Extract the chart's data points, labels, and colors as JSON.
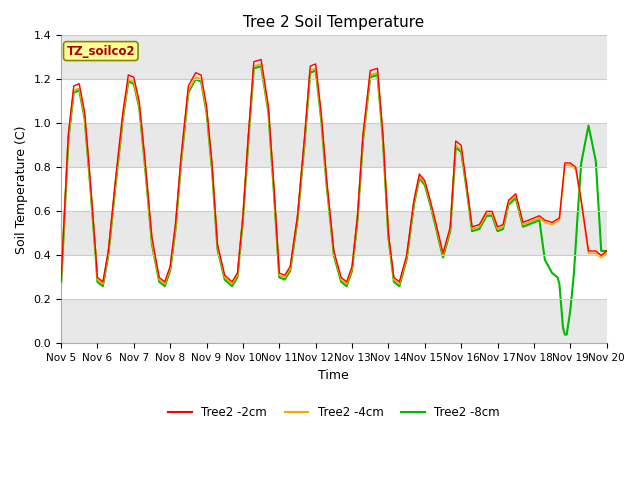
{
  "title": "Tree 2 Soil Temperature",
  "xlabel": "Time",
  "ylabel": "Soil Temperature (C)",
  "xlim": [
    0,
    15
  ],
  "ylim": [
    0.0,
    1.4
  ],
  "yticks": [
    0.0,
    0.2,
    0.4,
    0.6,
    0.8,
    1.0,
    1.2,
    1.4
  ],
  "xtick_labels": [
    "Nov 5",
    "Nov 6",
    "Nov 7",
    "Nov 8",
    "Nov 9",
    "Nov 10",
    "Nov 11",
    "Nov 12",
    "Nov 13",
    "Nov 14",
    "Nov 15",
    "Nov 16",
    "Nov 17",
    "Nov 18",
    "Nov 19",
    "Nov 20"
  ],
  "figure_bg": "#ffffff",
  "plot_bg": "#ffffff",
  "band_colors": [
    "#e8e8e8",
    "#ffffff"
  ],
  "grid_color": "#ffffff",
  "legend_label": "TZ_soilco2",
  "legend_box_facecolor": "#ffff99",
  "legend_box_edgecolor": "#888800",
  "legend_text_color": "#aa0000",
  "series": [
    {
      "label": "Tree2 -2cm",
      "color": "#ff0000",
      "linewidth": 1.0,
      "zorder": 3,
      "x": [
        0.0,
        0.08,
        0.2,
        0.35,
        0.5,
        0.65,
        0.8,
        0.95,
        1.0,
        1.15,
        1.3,
        1.5,
        1.7,
        1.85,
        2.0,
        2.15,
        2.3,
        2.5,
        2.7,
        2.85,
        3.0,
        3.15,
        3.3,
        3.5,
        3.7,
        3.85,
        4.0,
        4.15,
        4.3,
        4.5,
        4.7,
        4.85,
        5.0,
        5.15,
        5.3,
        5.5,
        5.7,
        5.85,
        6.0,
        6.15,
        6.3,
        6.5,
        6.7,
        6.85,
        7.0,
        7.15,
        7.3,
        7.5,
        7.7,
        7.85,
        8.0,
        8.15,
        8.3,
        8.5,
        8.7,
        8.85,
        9.0,
        9.15,
        9.3,
        9.5,
        9.7,
        9.85,
        10.0,
        10.15,
        10.3,
        10.5,
        10.7,
        10.85,
        11.0,
        11.15,
        11.3,
        11.5,
        11.7,
        11.85,
        12.0,
        12.15,
        12.3,
        12.5,
        12.7,
        12.85,
        13.0,
        13.15,
        13.3,
        13.5,
        13.7,
        13.85,
        14.0,
        14.15,
        14.3,
        14.5,
        14.7,
        14.85,
        15.0
      ],
      "y": [
        0.28,
        0.55,
        0.95,
        1.17,
        1.18,
        1.05,
        0.75,
        0.42,
        0.3,
        0.28,
        0.42,
        0.75,
        1.05,
        1.22,
        1.21,
        1.1,
        0.85,
        0.48,
        0.3,
        0.28,
        0.35,
        0.55,
        0.85,
        1.17,
        1.23,
        1.22,
        1.08,
        0.82,
        0.45,
        0.31,
        0.28,
        0.32,
        0.58,
        0.95,
        1.28,
        1.29,
        1.08,
        0.72,
        0.32,
        0.31,
        0.35,
        0.58,
        0.95,
        1.26,
        1.27,
        1.05,
        0.75,
        0.42,
        0.3,
        0.28,
        0.35,
        0.58,
        0.95,
        1.24,
        1.25,
        0.95,
        0.5,
        0.3,
        0.28,
        0.4,
        0.65,
        0.77,
        0.74,
        0.65,
        0.55,
        0.41,
        0.53,
        0.92,
        0.9,
        0.72,
        0.53,
        0.54,
        0.6,
        0.6,
        0.53,
        0.54,
        0.65,
        0.68,
        0.55,
        0.56,
        0.57,
        0.58,
        0.56,
        0.55,
        0.57,
        0.82,
        0.82,
        0.8,
        0.65,
        0.42,
        0.42,
        0.4,
        0.42
      ]
    },
    {
      "label": "Tree2 -4cm",
      "color": "#ffa500",
      "linewidth": 1.2,
      "zorder": 2,
      "x": [
        0.0,
        0.08,
        0.2,
        0.35,
        0.5,
        0.65,
        0.8,
        0.95,
        1.0,
        1.15,
        1.3,
        1.5,
        1.7,
        1.85,
        2.0,
        2.15,
        2.3,
        2.5,
        2.7,
        2.85,
        3.0,
        3.15,
        3.3,
        3.5,
        3.7,
        3.85,
        4.0,
        4.15,
        4.3,
        4.5,
        4.7,
        4.85,
        5.0,
        5.15,
        5.3,
        5.5,
        5.7,
        5.85,
        6.0,
        6.15,
        6.3,
        6.5,
        6.7,
        6.85,
        7.0,
        7.15,
        7.3,
        7.5,
        7.7,
        7.85,
        8.0,
        8.15,
        8.3,
        8.5,
        8.7,
        8.85,
        9.0,
        9.15,
        9.3,
        9.5,
        9.7,
        9.85,
        10.0,
        10.15,
        10.3,
        10.5,
        10.7,
        10.85,
        11.0,
        11.15,
        11.3,
        11.5,
        11.7,
        11.85,
        12.0,
        12.15,
        12.3,
        12.5,
        12.7,
        12.85,
        13.0,
        13.15,
        13.3,
        13.5,
        13.7,
        13.85,
        14.0,
        14.15,
        14.3,
        14.5,
        14.7,
        14.85,
        15.0
      ],
      "y": [
        0.27,
        0.53,
        0.93,
        1.15,
        1.16,
        1.03,
        0.73,
        0.41,
        0.29,
        0.27,
        0.41,
        0.73,
        1.03,
        1.2,
        1.19,
        1.08,
        0.83,
        0.46,
        0.29,
        0.27,
        0.34,
        0.53,
        0.83,
        1.15,
        1.21,
        1.2,
        1.06,
        0.8,
        0.44,
        0.3,
        0.27,
        0.31,
        0.57,
        0.93,
        1.26,
        1.27,
        1.06,
        0.7,
        0.31,
        0.3,
        0.34,
        0.57,
        0.93,
        1.24,
        1.25,
        1.03,
        0.73,
        0.41,
        0.29,
        0.27,
        0.34,
        0.57,
        0.93,
        1.22,
        1.23,
        0.93,
        0.49,
        0.29,
        0.27,
        0.39,
        0.64,
        0.76,
        0.73,
        0.64,
        0.54,
        0.4,
        0.52,
        0.9,
        0.88,
        0.71,
        0.52,
        0.53,
        0.59,
        0.59,
        0.52,
        0.53,
        0.64,
        0.67,
        0.54,
        0.55,
        0.56,
        0.57,
        0.55,
        0.54,
        0.56,
        0.81,
        0.81,
        0.79,
        0.64,
        0.41,
        0.41,
        0.39,
        0.41
      ]
    },
    {
      "label": "Tree2 -8cm",
      "color": "#00bb00",
      "linewidth": 1.5,
      "zorder": 1,
      "x": [
        0.0,
        0.08,
        0.2,
        0.35,
        0.5,
        0.65,
        0.8,
        0.95,
        1.0,
        1.15,
        1.3,
        1.5,
        1.7,
        1.85,
        2.0,
        2.15,
        2.3,
        2.5,
        2.7,
        2.85,
        3.0,
        3.15,
        3.3,
        3.5,
        3.7,
        3.85,
        4.0,
        4.15,
        4.3,
        4.5,
        4.7,
        4.85,
        5.0,
        5.15,
        5.3,
        5.5,
        5.7,
        5.85,
        6.0,
        6.15,
        6.3,
        6.5,
        6.7,
        6.85,
        7.0,
        7.15,
        7.3,
        7.5,
        7.7,
        7.85,
        8.0,
        8.15,
        8.3,
        8.5,
        8.7,
        8.85,
        9.0,
        9.15,
        9.3,
        9.5,
        9.7,
        9.85,
        10.0,
        10.15,
        10.3,
        10.5,
        10.7,
        10.85,
        11.0,
        11.15,
        11.3,
        11.5,
        11.7,
        11.85,
        12.0,
        12.15,
        12.3,
        12.5,
        12.7,
        12.85,
        13.0,
        13.15,
        13.3,
        13.5,
        13.65,
        13.7,
        13.75,
        13.8,
        13.85,
        13.9,
        14.0,
        14.1,
        14.2,
        14.3,
        14.5,
        14.7,
        14.85,
        15.0
      ],
      "y": [
        0.26,
        0.52,
        0.92,
        1.14,
        1.15,
        1.02,
        0.72,
        0.4,
        0.28,
        0.26,
        0.4,
        0.72,
        1.02,
        1.19,
        1.18,
        1.07,
        0.82,
        0.45,
        0.28,
        0.26,
        0.33,
        0.52,
        0.82,
        1.14,
        1.2,
        1.19,
        1.05,
        0.79,
        0.43,
        0.29,
        0.26,
        0.3,
        0.56,
        0.92,
        1.25,
        1.26,
        1.05,
        0.69,
        0.3,
        0.29,
        0.33,
        0.56,
        0.92,
        1.23,
        1.24,
        1.02,
        0.72,
        0.4,
        0.28,
        0.26,
        0.33,
        0.56,
        0.92,
        1.21,
        1.22,
        0.92,
        0.48,
        0.28,
        0.26,
        0.38,
        0.63,
        0.75,
        0.72,
        0.63,
        0.53,
        0.39,
        0.51,
        0.89,
        0.87,
        0.7,
        0.51,
        0.52,
        0.58,
        0.58,
        0.51,
        0.52,
        0.63,
        0.66,
        0.53,
        0.54,
        0.55,
        0.56,
        0.38,
        0.32,
        0.3,
        0.27,
        0.17,
        0.07,
        0.04,
        0.04,
        0.15,
        0.32,
        0.58,
        0.82,
        0.99,
        0.83,
        0.42,
        0.42
      ]
    }
  ]
}
